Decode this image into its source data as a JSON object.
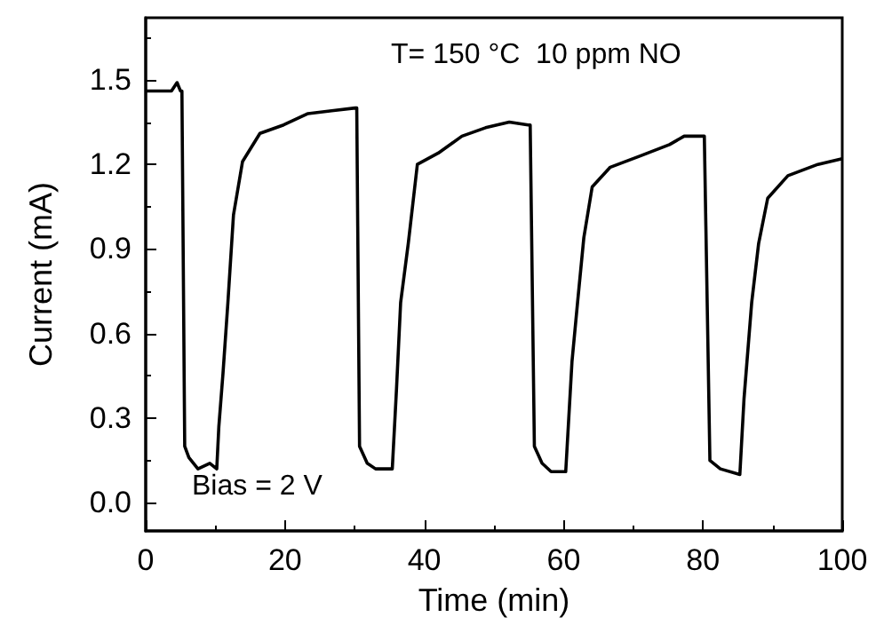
{
  "chart_data": {
    "type": "line",
    "xlabel": "Time (min)",
    "ylabel": "Current (mA)",
    "annotations": [
      "T= 150 °C  10 ppm NO",
      "Bias = 2 V"
    ],
    "xlim": [
      0,
      100
    ],
    "xticks": [
      0,
      20,
      40,
      60,
      80,
      100
    ],
    "ylim": [
      -0.1,
      1.72
    ],
    "yticks": [
      {
        "value": 0,
        "label": "0.0"
      },
      {
        "value": 0.3,
        "label": "0.3"
      },
      {
        "value": 0.6,
        "label": "0.6"
      },
      {
        "value": 0.9,
        "label": "0.9"
      },
      {
        "value": 1.2,
        "label": "1.2"
      },
      {
        "value": 1.5,
        "label": "1.5"
      }
    ],
    "grid": false,
    "marker": "none",
    "line_style": "solid",
    "series": [
      {
        "color": "#000000",
        "x": [
          0,
          3.7,
          4.5,
          5.0,
          5.2,
          5.6,
          6.2,
          7.5,
          9.2,
          10.2,
          10.5,
          11.1,
          11.8,
          12.6,
          13.9,
          16.4,
          19.8,
          23.3,
          26.7,
          30.1,
          30.3,
          30.7,
          31.8,
          33,
          35.4,
          36,
          36.6,
          37.7,
          39,
          42,
          45.4,
          48.8,
          52.2,
          54.9,
          55.2,
          55.8,
          56.9,
          58.2,
          60.3,
          61.2,
          62,
          62.9,
          64.1,
          66.7,
          71,
          75.2,
          77.3,
          79.9,
          80.2,
          81,
          82.5,
          85.3,
          85.9,
          87,
          88,
          89.3,
          92.2,
          96.5,
          100
        ],
        "values": [
          1.46,
          1.46,
          1.49,
          1.46,
          1.46,
          0.2,
          0.16,
          0.12,
          0.14,
          0.12,
          0.27,
          0.46,
          0.71,
          1.02,
          1.21,
          1.31,
          1.34,
          1.38,
          1.39,
          1.4,
          1.4,
          0.2,
          0.14,
          0.12,
          0.12,
          0.4,
          0.71,
          0.92,
          1.2,
          1.24,
          1.3,
          1.33,
          1.35,
          1.34,
          1.34,
          0.2,
          0.14,
          0.11,
          0.11,
          0.5,
          0.71,
          0.94,
          1.12,
          1.19,
          1.23,
          1.27,
          1.3,
          1.3,
          1.3,
          0.15,
          0.12,
          0.1,
          0.37,
          0.71,
          0.92,
          1.08,
          1.16,
          1.2,
          1.22
        ]
      }
    ]
  }
}
